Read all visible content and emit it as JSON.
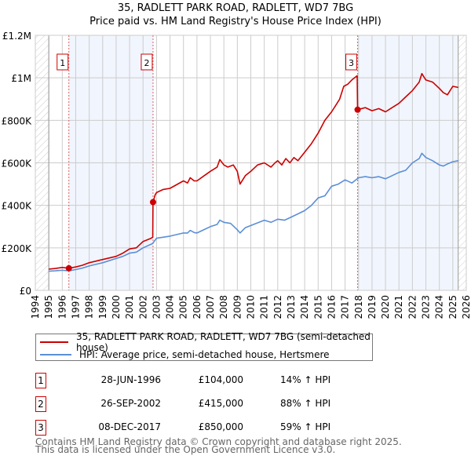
{
  "chart_data": {
    "type": "line",
    "title": "35, RADLETT PARK ROAD, RADLETT, WD7 7BG",
    "subtitle": "Price paid vs. HM Land Registry's House Price Index (HPI)",
    "xlabel": "",
    "ylabel": "",
    "xlim": [
      1994,
      2026
    ],
    "ylim": [
      0,
      1200000
    ],
    "grid": true,
    "y_ticks": [
      {
        "v": 0,
        "label": "£0"
      },
      {
        "v": 200000,
        "label": "£200K"
      },
      {
        "v": 400000,
        "label": "£400K"
      },
      {
        "v": 600000,
        "label": "£600K"
      },
      {
        "v": 800000,
        "label": "£800K"
      },
      {
        "v": 1000000,
        "label": "£1M"
      },
      {
        "v": 1200000,
        "label": "£1.2M"
      }
    ],
    "x_ticks": [
      "1994",
      "1995",
      "1996",
      "1997",
      "1998",
      "1999",
      "2000",
      "2001",
      "2002",
      "2003",
      "2004",
      "2005",
      "2006",
      "2007",
      "2008",
      "2009",
      "2010",
      "2011",
      "2012",
      "2013",
      "2014",
      "2015",
      "2016",
      "2017",
      "2018",
      "2019",
      "2020",
      "2021",
      "2022",
      "2023",
      "2024",
      "2025",
      "2026"
    ],
    "data_range": [
      1995,
      2025.4
    ],
    "shaded_ranges": [
      [
        1996.49,
        2002.74
      ],
      [
        2017.93,
        2025.4
      ]
    ],
    "series": [
      {
        "name": "35, RADLETT PARK ROAD, RADLETT, WD7 7BG (semi-detached house)",
        "color": "#cc0000",
        "x": [
          1995,
          1995.5,
          1996,
          1996.49,
          1997,
          1997.5,
          1998,
          1999,
          2000,
          2000.5,
          2001,
          2001.5,
          2002,
          2002.6,
          2002.72,
          2002.74,
          2002.9,
          2003,
          2003.5,
          2004,
          2005,
          2005.3,
          2005.5,
          2005.8,
          2006,
          2007,
          2007.5,
          2007.7,
          2008,
          2008.3,
          2008.7,
          2009,
          2009.2,
          2009.6,
          2010,
          2010.5,
          2011,
          2011.5,
          2011.8,
          2012,
          2012.3,
          2012.6,
          2012.9,
          2013.2,
          2013.5,
          2014,
          2014.5,
          2015,
          2015.5,
          2016,
          2016.3,
          2016.6,
          2016.9,
          2017.2,
          2017.5,
          2017.9,
          2017.93,
          2018.5,
          2019,
          2019.5,
          2020,
          2020.5,
          2021,
          2021.5,
          2022,
          2022.5,
          2022.7,
          2023,
          2023.5,
          2024,
          2024.3,
          2024.6,
          2025,
          2025.4
        ],
        "y": [
          100000,
          103000,
          108000,
          104000,
          110000,
          118000,
          130000,
          145000,
          160000,
          175000,
          195000,
          200000,
          230000,
          245000,
          250000,
          415000,
          450000,
          460000,
          475000,
          480000,
          515000,
          505000,
          530000,
          515000,
          515000,
          560000,
          580000,
          615000,
          590000,
          580000,
          590000,
          560000,
          500000,
          540000,
          560000,
          590000,
          600000,
          580000,
          600000,
          610000,
          590000,
          620000,
          600000,
          625000,
          610000,
          650000,
          690000,
          740000,
          800000,
          840000,
          870000,
          900000,
          960000,
          970000,
          990000,
          1010000,
          850000,
          860000,
          845000,
          855000,
          840000,
          860000,
          880000,
          910000,
          940000,
          980000,
          1020000,
          990000,
          980000,
          950000,
          930000,
          920000,
          960000,
          955000
        ]
      },
      {
        "name": "HPI: Average price, semi-detached house, Hertsmere",
        "color": "#5b8fd6",
        "x": [
          1995,
          1995.5,
          1996,
          1996.49,
          1997,
          1997.5,
          1998,
          1999,
          2000,
          2000.5,
          2001,
          2001.5,
          2002,
          2002.7,
          2003,
          2004,
          2005,
          2005.3,
          2005.5,
          2005.8,
          2006,
          2007,
          2007.5,
          2007.7,
          2008,
          2008.5,
          2009,
          2009.2,
          2009.6,
          2010,
          2011,
          2011.5,
          2012,
          2012.5,
          2013,
          2014,
          2014.5,
          2015,
          2015.5,
          2016,
          2016.5,
          2017,
          2017.5,
          2018,
          2018.5,
          2019,
          2019.5,
          2020,
          2020.5,
          2021,
          2021.5,
          2022,
          2022.5,
          2022.7,
          2023,
          2023.5,
          2024,
          2024.3,
          2024.6,
          2025,
          2025.4
        ],
        "y": [
          90000,
          92000,
          95000,
          92000,
          98000,
          105000,
          115000,
          130000,
          150000,
          160000,
          175000,
          180000,
          200000,
          220000,
          245000,
          255000,
          270000,
          270000,
          282000,
          272000,
          270000,
          300000,
          310000,
          330000,
          320000,
          315000,
          285000,
          270000,
          295000,
          305000,
          330000,
          320000,
          335000,
          330000,
          345000,
          375000,
          400000,
          435000,
          445000,
          490000,
          500000,
          520000,
          505000,
          530000,
          535000,
          530000,
          535000,
          525000,
          540000,
          555000,
          565000,
          600000,
          620000,
          645000,
          625000,
          610000,
          590000,
          585000,
          595000,
          605000,
          610000
        ]
      }
    ],
    "sales": [
      {
        "num": "1",
        "x": 1996.49,
        "price": 104000
      },
      {
        "num": "2",
        "x": 2002.74,
        "price": 415000
      },
      {
        "num": "3",
        "x": 2017.93,
        "price": 850000
      }
    ]
  },
  "legend": {
    "property": "35, RADLETT PARK ROAD, RADLETT, WD7 7BG (semi-detached house)",
    "hpi": "HPI: Average price, semi-detached house, Hertsmere"
  },
  "transactions": [
    {
      "num": "1",
      "date": "28-JUN-1996",
      "price": "£104,000",
      "hpi": "14% ↑ HPI"
    },
    {
      "num": "2",
      "date": "26-SEP-2002",
      "price": "£415,000",
      "hpi": "88% ↑ HPI"
    },
    {
      "num": "3",
      "date": "08-DEC-2017",
      "price": "£850,000",
      "hpi": "59% ↑ HPI"
    }
  ],
  "footer": {
    "line1": "Contains HM Land Registry data © Crown copyright and database right 2025.",
    "line2": "This data is licensed under the Open Government Licence v3.0."
  }
}
